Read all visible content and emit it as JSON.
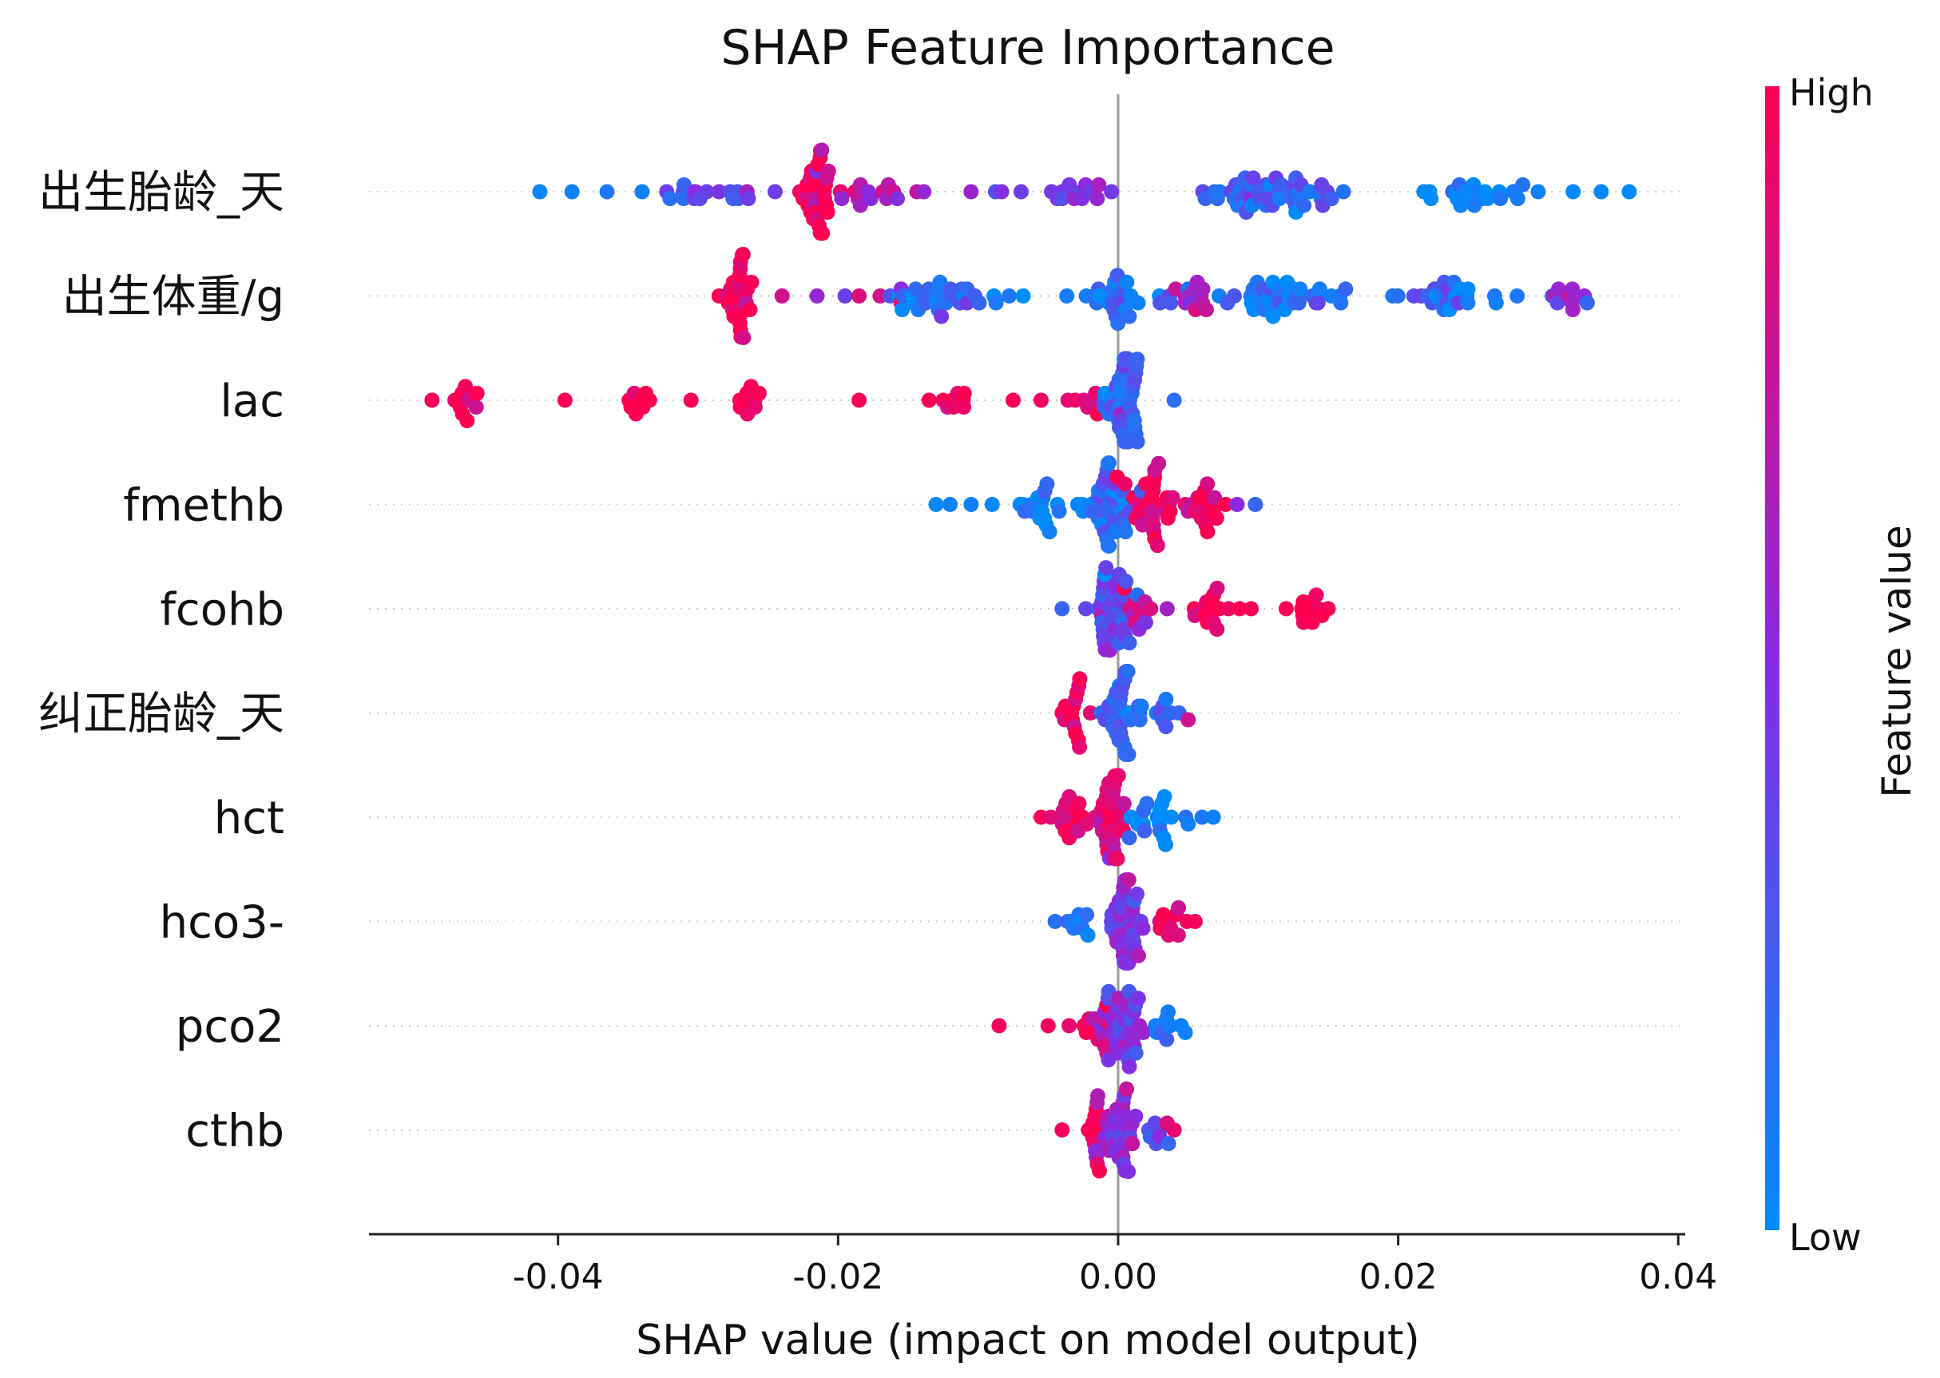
{
  "chart_data": {
    "type": "scatter",
    "subtype": "shap-beeswarm",
    "title": "SHAP Feature Importance",
    "xlabel": "SHAP value (impact on model output)",
    "xlim": [
      -0.0535,
      0.0405
    ],
    "xticks": [
      {
        "value": -0.04,
        "label": "-0.04"
      },
      {
        "value": -0.02,
        "label": "-0.02"
      },
      {
        "value": 0.0,
        "label": "0.00"
      },
      {
        "value": 0.02,
        "label": "0.02"
      },
      {
        "value": 0.04,
        "label": "0.04"
      }
    ],
    "colorbar": {
      "title": "Feature value",
      "high_label": "High",
      "low_label": "Low",
      "high_color": "#ff0052",
      "mid_color": "#8a2be2",
      "low_color": "#008bfb"
    },
    "grid": "dotted horizontal per feature",
    "features": [
      {
        "name": "出生胎龄_天",
        "range": [
          -0.0413,
          0.0365
        ],
        "color_trend": "mixed",
        "clusters": [
          {
            "center": -0.0215,
            "width": 0.001,
            "count": 30,
            "feature_value": 0.98
          },
          {
            "center": 0.011,
            "width": 0.004,
            "count": 50,
            "feature_value": 0.2
          },
          {
            "center": -0.03,
            "width": 0.004,
            "count": 14,
            "feature_value": 0.3
          },
          {
            "center": -0.017,
            "width": 0.004,
            "count": 18,
            "feature_value": 0.65
          },
          {
            "center": -0.005,
            "width": 0.004,
            "count": 18,
            "feature_value": 0.45
          },
          {
            "center": 0.025,
            "width": 0.005,
            "count": 22,
            "feature_value": 0.05
          }
        ],
        "points": [
          {
            "x": -0.0413,
            "v": 0.02
          },
          {
            "x": -0.039,
            "v": 0.05
          },
          {
            "x": -0.0365,
            "v": 0.1
          },
          {
            "x": -0.034,
            "v": 0.05
          },
          {
            "x": -0.032,
            "v": 0.15
          },
          {
            "x": -0.0285,
            "v": 0.45
          },
          {
            "x": -0.0265,
            "v": 0.6
          },
          {
            "x": -0.0245,
            "v": 0.4
          },
          {
            "x": 0.03,
            "v": 0.05
          },
          {
            "x": 0.0325,
            "v": 0.02
          },
          {
            "x": 0.0345,
            "v": 0.02
          },
          {
            "x": 0.0365,
            "v": 0.01
          }
        ]
      },
      {
        "name": "出生体重/g",
        "range": [
          -0.0285,
          0.0335
        ],
        "color_trend": "mixed",
        "clusters": [
          {
            "center": -0.027,
            "width": 0.0008,
            "count": 28,
            "feature_value": 0.97
          },
          {
            "center": -0.0125,
            "width": 0.0035,
            "count": 32,
            "feature_value": 0.15
          },
          {
            "center": 0.0,
            "width": 0.003,
            "count": 28,
            "feature_value": 0.15
          },
          {
            "center": 0.0055,
            "width": 0.0008,
            "count": 12,
            "feature_value": 0.72
          },
          {
            "center": 0.012,
            "width": 0.004,
            "count": 38,
            "feature_value": 0.1
          },
          {
            "center": 0.023,
            "width": 0.0035,
            "count": 24,
            "feature_value": 0.15
          },
          {
            "center": 0.032,
            "width": 0.0012,
            "count": 10,
            "feature_value": 0.5
          }
        ],
        "points": [
          {
            "x": -0.024,
            "v": 0.8
          },
          {
            "x": -0.0215,
            "v": 0.55
          },
          {
            "x": -0.0195,
            "v": 0.4
          },
          {
            "x": -0.0185,
            "v": 0.85
          },
          {
            "x": -0.017,
            "v": 0.8
          },
          {
            "x": -0.0155,
            "v": 0.95
          },
          {
            "x": -0.0155,
            "v": 0.5
          },
          {
            "x": 0.027,
            "v": 0.05
          },
          {
            "x": 0.0285,
            "v": 0.1
          }
        ]
      },
      {
        "name": "lac",
        "range": [
          -0.049,
          0.004
        ],
        "color_trend": "high-left",
        "clusters": [
          {
            "center": 0.0005,
            "width": 0.0012,
            "count": 46,
            "feature_value": 0.2
          },
          {
            "center": -0.0465,
            "width": 0.0012,
            "count": 10,
            "feature_value": 0.98
          },
          {
            "center": -0.0265,
            "width": 0.0009,
            "count": 10,
            "feature_value": 0.98
          },
          {
            "center": -0.0345,
            "width": 0.0011,
            "count": 8,
            "feature_value": 0.98
          },
          {
            "center": -0.0115,
            "width": 0.0012,
            "count": 8,
            "feature_value": 0.98
          },
          {
            "center": -0.0025,
            "width": 0.0012,
            "count": 8,
            "feature_value": 0.85
          }
        ],
        "points": [
          {
            "x": -0.049,
            "v": 0.99
          },
          {
            "x": -0.0395,
            "v": 0.98
          },
          {
            "x": -0.0305,
            "v": 0.98
          },
          {
            "x": -0.0185,
            "v": 0.98
          },
          {
            "x": -0.0135,
            "v": 0.98
          },
          {
            "x": -0.0075,
            "v": 0.98
          },
          {
            "x": -0.0055,
            "v": 0.95
          },
          {
            "x": 0.004,
            "v": 0.15
          }
        ]
      },
      {
        "name": "fmethb",
        "range": [
          -0.013,
          0.0098
        ],
        "color_trend": "high-right",
        "clusters": [
          {
            "center": -0.0005,
            "width": 0.0015,
            "count": 42,
            "feature_value": 0.15
          },
          {
            "center": 0.0025,
            "width": 0.0015,
            "count": 30,
            "feature_value": 0.95
          },
          {
            "center": 0.0065,
            "width": 0.0015,
            "count": 18,
            "feature_value": 0.97
          },
          {
            "center": -0.0055,
            "width": 0.0015,
            "count": 16,
            "feature_value": 0.05
          }
        ],
        "points": [
          {
            "x": -0.013,
            "v": 0.02
          },
          {
            "x": -0.012,
            "v": 0.05
          },
          {
            "x": -0.0105,
            "v": 0.05
          },
          {
            "x": -0.009,
            "v": 0.02
          },
          {
            "x": -0.007,
            "v": 0.03
          },
          {
            "x": 0.0085,
            "v": 0.5
          },
          {
            "x": 0.0098,
            "v": 0.2
          }
        ]
      },
      {
        "name": "fcohb",
        "range": [
          -0.004,
          0.015
        ],
        "color_trend": "high-right",
        "clusters": [
          {
            "center": -0.0005,
            "width": 0.0013,
            "count": 38,
            "feature_value": 0.35
          },
          {
            "center": 0.0012,
            "width": 0.0008,
            "count": 10,
            "feature_value": 0.8
          },
          {
            "center": 0.0065,
            "width": 0.0018,
            "count": 16,
            "feature_value": 0.97
          },
          {
            "center": 0.0135,
            "width": 0.0012,
            "count": 12,
            "feature_value": 0.98
          }
        ],
        "points": [
          {
            "x": -0.004,
            "v": 0.2
          },
          {
            "x": 0.0035,
            "v": 0.6
          },
          {
            "x": 0.0095,
            "v": 0.98
          },
          {
            "x": 0.015,
            "v": 0.98
          }
        ]
      },
      {
        "name": "纠正胎龄_天",
        "range": [
          -0.004,
          0.005
        ],
        "color_trend": "high-left",
        "clusters": [
          {
            "center": 0.0003,
            "width": 0.0012,
            "count": 36,
            "feature_value": 0.2
          },
          {
            "center": -0.003,
            "width": 0.0008,
            "count": 14,
            "feature_value": 0.96
          },
          {
            "center": 0.0035,
            "width": 0.0009,
            "count": 8,
            "feature_value": 0.25
          }
        ],
        "points": [
          {
            "x": -0.004,
            "v": 0.98
          },
          {
            "x": 0.005,
            "v": 0.8
          }
        ]
      },
      {
        "name": "hct",
        "range": [
          -0.0055,
          0.0068
        ],
        "color_trend": "high-left",
        "clusters": [
          {
            "center": -0.0005,
            "width": 0.001,
            "count": 36,
            "feature_value": 0.85
          },
          {
            "center": -0.0035,
            "width": 0.001,
            "count": 14,
            "feature_value": 0.95
          },
          {
            "center": 0.003,
            "width": 0.0014,
            "count": 20,
            "feature_value": 0.05
          }
        ],
        "points": [
          {
            "x": -0.0055,
            "v": 0.97
          },
          {
            "x": 0.006,
            "v": 0.1
          },
          {
            "x": 0.0068,
            "v": 0.05
          }
        ]
      },
      {
        "name": "hco3-",
        "range": [
          -0.0045,
          0.0055
        ],
        "color_trend": "mixed",
        "clusters": [
          {
            "center": 0.0003,
            "width": 0.0012,
            "count": 38,
            "feature_value": 0.45
          },
          {
            "center": 0.0035,
            "width": 0.001,
            "count": 10,
            "feature_value": 0.9
          },
          {
            "center": -0.003,
            "width": 0.0008,
            "count": 8,
            "feature_value": 0.1
          }
        ],
        "points": [
          {
            "x": -0.0045,
            "v": 0.15
          },
          {
            "x": 0.0055,
            "v": 0.97
          }
        ]
      },
      {
        "name": "pco2",
        "range": [
          -0.0085,
          0.0048
        ],
        "color_trend": "high-left",
        "clusters": [
          {
            "center": 0.0002,
            "width": 0.0012,
            "count": 38,
            "feature_value": 0.45
          },
          {
            "center": -0.0015,
            "width": 0.0008,
            "count": 12,
            "feature_value": 0.95
          },
          {
            "center": 0.003,
            "width": 0.0009,
            "count": 8,
            "feature_value": 0.1
          }
        ],
        "points": [
          {
            "x": -0.0085,
            "v": 0.97
          },
          {
            "x": -0.005,
            "v": 0.96
          },
          {
            "x": -0.0035,
            "v": 0.9
          },
          {
            "x": 0.0045,
            "v": 0.05
          },
          {
            "x": 0.0048,
            "v": 0.05
          }
        ]
      },
      {
        "name": "cthb",
        "range": [
          -0.004,
          0.004
        ],
        "color_trend": "mixed",
        "clusters": [
          {
            "center": 0.0,
            "width": 0.0012,
            "count": 36,
            "feature_value": 0.5
          },
          {
            "center": -0.0015,
            "width": 0.0008,
            "count": 10,
            "feature_value": 0.95
          },
          {
            "center": 0.0025,
            "width": 0.0008,
            "count": 8,
            "feature_value": 0.3
          }
        ],
        "points": [
          {
            "x": -0.004,
            "v": 0.97
          },
          {
            "x": 0.0035,
            "v": 0.85
          },
          {
            "x": 0.004,
            "v": 0.9
          }
        ]
      }
    ]
  }
}
